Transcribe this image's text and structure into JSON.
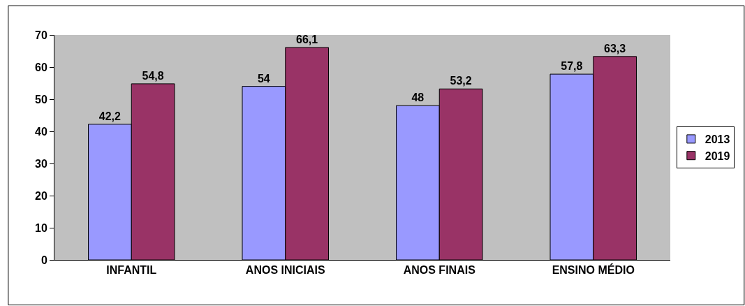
{
  "chart_data": {
    "type": "bar",
    "categories": [
      "INFANTIL",
      "ANOS INICIAIS",
      "ANOS FINAIS",
      "ENSINO MÉDIO"
    ],
    "series": [
      {
        "name": "2013",
        "color": "#9999ff",
        "values": [
          42.2,
          54,
          48,
          57.8
        ],
        "value_labels": [
          "42,2",
          "54",
          "48",
          "57,8"
        ]
      },
      {
        "name": "2019",
        "color": "#993366",
        "values": [
          54.8,
          66.1,
          53.2,
          63.3
        ],
        "value_labels": [
          "54,8",
          "66,1",
          "53,2",
          "63,3"
        ]
      }
    ],
    "ylim": [
      0,
      70
    ],
    "yticks": [
      0,
      10,
      20,
      30,
      40,
      50,
      60,
      70
    ],
    "grid": false,
    "legend": "right"
  }
}
